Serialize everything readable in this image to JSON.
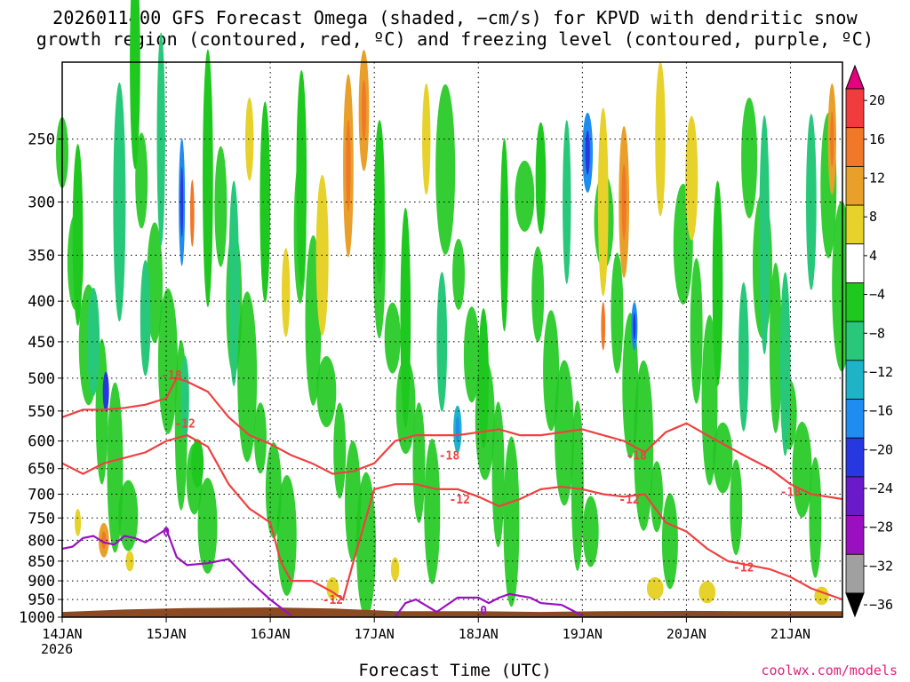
{
  "title_line1": "2026011400 GFS Forecast Omega (shaded, −cm/s) for KPVD with dendritic snow",
  "title_line2": "growth region (contoured, red, ºC) and freezing level (contoured, purple, ºC)",
  "credit": "coolwx.com/models",
  "chart_data": {
    "type": "heatmap",
    "title": "2026011400 GFS Forecast Omega (shaded, −cm/s) for KPVD with dendritic snow growth region (contoured, red, ºC) and freezing level (contoured, purple, ºC)",
    "xlabel": "Forecast Time (UTC)",
    "ylabel": "",
    "x_ticks": [
      "14JAN",
      "15JAN",
      "16JAN",
      "17JAN",
      "18JAN",
      "19JAN",
      "20JAN",
      "21JAN"
    ],
    "x_year": "2026",
    "xlim_days": [
      0,
      7.5
    ],
    "y_ticks": [
      250,
      300,
      350,
      400,
      450,
      500,
      550,
      600,
      650,
      700,
      750,
      800,
      850,
      900,
      950,
      1000
    ],
    "ylim_hpa": [
      1000,
      200
    ],
    "grid": true,
    "colorbar": {
      "levels": [
        -36,
        -32,
        -28,
        -24,
        -20,
        -16,
        -12,
        -8,
        -4,
        4,
        8,
        12,
        16,
        20
      ],
      "labels": [
        "20",
        "16",
        "12",
        "8",
        "4",
        "−4",
        "−8",
        "−12",
        "−16",
        "−20",
        "−24",
        "−28",
        "−32",
        "−36"
      ],
      "colors": [
        "#e6007e",
        "#f03c3c",
        "#f07828",
        "#e8a02a",
        "#e6d22a",
        "#ffffff",
        "#1ec81e",
        "#28c87a",
        "#1eb4c8",
        "#1e8cf0",
        "#2838e0",
        "#6a1ac8",
        "#9a10c0",
        "#a0a0a0",
        "#000000"
      ]
    },
    "shading_levels": [
      {
        "value": -4,
        "color": "#1ec81e"
      },
      {
        "value": -8,
        "color": "#28c87a"
      },
      {
        "value": -12,
        "color": "#1eb4c8"
      },
      {
        "value": -16,
        "color": "#1e8cf0"
      },
      {
        "value": -20,
        "color": "#2838e0"
      },
      {
        "value": 4,
        "color": "#e6d22a"
      },
      {
        "value": 8,
        "color": "#e8a02a"
      },
      {
        "value": 12,
        "color": "#f07828"
      }
    ],
    "series": [
      {
        "name": "-18",
        "color": "#f04040",
        "days": [
          0.0,
          0.2,
          0.4,
          0.6,
          0.8,
          1.0,
          1.1,
          1.2,
          1.4,
          1.6,
          1.8,
          2.0,
          2.2,
          2.4,
          2.6,
          2.8,
          3.0,
          3.2,
          3.4,
          3.6,
          3.8,
          4.0,
          4.2,
          4.4,
          4.6,
          4.8,
          5.0,
          5.2,
          5.4,
          5.6,
          5.8,
          6.0,
          6.2,
          6.4,
          6.6,
          6.8,
          7.0,
          7.2,
          7.5
        ],
        "hpa": [
          560,
          548,
          548,
          545,
          540,
          530,
          500,
          505,
          520,
          560,
          590,
          605,
          625,
          640,
          660,
          655,
          640,
          600,
          590,
          590,
          590,
          585,
          580,
          590,
          590,
          585,
          580,
          590,
          600,
          620,
          585,
          570,
          590,
          610,
          630,
          650,
          680,
          700,
          710
        ]
      },
      {
        "name": "-12",
        "color": "#f04040",
        "days": [
          0.0,
          0.2,
          0.4,
          0.6,
          0.8,
          1.0,
          1.2,
          1.4,
          1.6,
          1.8,
          2.0,
          2.1,
          2.2,
          2.4,
          2.6,
          2.7,
          2.8,
          3.0,
          3.2,
          3.4,
          3.6,
          3.8,
          4.0,
          4.2,
          4.4,
          4.6,
          4.8,
          5.0,
          5.2,
          5.4,
          5.6,
          5.8,
          6.0,
          6.2,
          6.4,
          6.6,
          6.8,
          7.0,
          7.2,
          7.5
        ],
        "hpa": [
          640,
          660,
          640,
          630,
          620,
          600,
          590,
          610,
          680,
          730,
          760,
          850,
          900,
          900,
          930,
          950,
          850,
          690,
          680,
          680,
          690,
          690,
          705,
          725,
          710,
          690,
          685,
          690,
          700,
          705,
          700,
          760,
          780,
          820,
          850,
          860,
          870,
          890,
          920,
          950
        ]
      },
      {
        "name": "0",
        "color": "#9a10c0",
        "days": [
          0.0,
          0.1,
          0.2,
          0.3,
          0.4,
          0.5,
          0.6,
          0.7,
          0.8,
          0.9,
          1.0,
          1.1,
          1.2,
          1.4,
          1.6,
          1.8,
          2.0,
          2.2
        ],
        "hpa": [
          820,
          815,
          795,
          790,
          805,
          810,
          790,
          795,
          805,
          790,
          775,
          840,
          860,
          855,
          845,
          900,
          950,
          995
        ]
      },
      {
        "name": "0",
        "color": "#9a10c0",
        "days": [
          3.2,
          3.3,
          3.4,
          3.6,
          3.8,
          4.0,
          4.1,
          4.2,
          4.3,
          4.5,
          4.6,
          4.8,
          5.0
        ],
        "hpa": [
          1000,
          960,
          950,
          985,
          945,
          945,
          960,
          945,
          935,
          945,
          960,
          965,
          995
        ]
      }
    ],
    "labels": [
      {
        "text": "-18",
        "day": 1.05,
        "hpa": 495
      },
      {
        "text": "-12",
        "day": 1.18,
        "hpa": 570
      },
      {
        "text": "-12",
        "day": 2.6,
        "hpa": 950
      },
      {
        "text": "-18",
        "day": 3.72,
        "hpa": 625
      },
      {
        "text": "-12",
        "day": 3.82,
        "hpa": 710
      },
      {
        "text": "-18",
        "day": 5.52,
        "hpa": 625
      },
      {
        "text": "-12",
        "day": 5.45,
        "hpa": 710
      },
      {
        "text": "-12",
        "day": 6.55,
        "hpa": 865
      },
      {
        "text": "-18",
        "day": 7.0,
        "hpa": 695
      },
      {
        "text": "0",
        "day": 1.0,
        "hpa": 780
      },
      {
        "text": "0",
        "day": 4.05,
        "hpa": 980
      }
    ],
    "ground_color": "#8b4a22"
  },
  "blobs": [
    {
      "d": 0.15,
      "p": 330,
      "w": 0.05,
      "h": 170,
      "v": -6
    },
    {
      "d": 0.3,
      "p": 450,
      "w": 0.06,
      "h": 140,
      "v": -10
    },
    {
      "d": 0.42,
      "p": 520,
      "w": 0.03,
      "h": 60,
      "v": -20
    },
    {
      "d": 0.55,
      "p": 300,
      "w": 0.06,
      "h": 200,
      "v": -8
    },
    {
      "d": 0.7,
      "p": 200,
      "w": 0.05,
      "h": 120,
      "v": -6
    },
    {
      "d": 0.8,
      "p": 420,
      "w": 0.05,
      "h": 140,
      "v": -8
    },
    {
      "d": 0.95,
      "p": 250,
      "w": 0.04,
      "h": 150,
      "v": -8
    },
    {
      "d": 1.15,
      "p": 300,
      "w": 0.03,
      "h": 110,
      "v": -18
    },
    {
      "d": 1.25,
      "p": 310,
      "w": 0.02,
      "h": 60,
      "v": 12
    },
    {
      "d": 1.18,
      "p": 530,
      "w": 0.04,
      "h": 130,
      "v": -10
    },
    {
      "d": 1.4,
      "p": 280,
      "w": 0.05,
      "h": 200,
      "v": -6
    },
    {
      "d": 1.3,
      "p": 640,
      "w": 0.06,
      "h": 90,
      "v": -6
    },
    {
      "d": 0.4,
      "p": 800,
      "w": 0.05,
      "h": 80,
      "v": 8
    },
    {
      "d": 0.15,
      "p": 760,
      "w": 0.03,
      "h": 60,
      "v": 5
    },
    {
      "d": 0.65,
      "p": 850,
      "w": 0.04,
      "h": 50,
      "v": 6
    },
    {
      "d": 1.65,
      "p": 380,
      "w": 0.05,
      "h": 220,
      "v": -8
    },
    {
      "d": 1.8,
      "p": 250,
      "w": 0.04,
      "h": 60,
      "v": 6
    },
    {
      "d": 1.95,
      "p": 300,
      "w": 0.05,
      "h": 170,
      "v": -6
    },
    {
      "d": 2.15,
      "p": 390,
      "w": 0.04,
      "h": 100,
      "v": 6
    },
    {
      "d": 2.3,
      "p": 280,
      "w": 0.05,
      "h": 170,
      "v": -6
    },
    {
      "d": 2.5,
      "p": 350,
      "w": 0.06,
      "h": 160,
      "v": 5
    },
    {
      "d": 2.75,
      "p": 270,
      "w": 0.05,
      "h": 140,
      "v": 10
    },
    {
      "d": 2.9,
      "p": 230,
      "w": 0.05,
      "h": 80,
      "v": 8
    },
    {
      "d": 3.05,
      "p": 300,
      "w": 0.05,
      "h": 140,
      "v": -6
    },
    {
      "d": 3.3,
      "p": 420,
      "w": 0.05,
      "h": 260,
      "v": -6
    },
    {
      "d": 3.5,
      "p": 250,
      "w": 0.04,
      "h": 80,
      "v": 5
    },
    {
      "d": 3.65,
      "p": 450,
      "w": 0.05,
      "h": 180,
      "v": -8
    },
    {
      "d": 3.8,
      "p": 580,
      "w": 0.04,
      "h": 80,
      "v": -14
    },
    {
      "d": 4.05,
      "p": 500,
      "w": 0.05,
      "h": 200,
      "v": -6
    },
    {
      "d": 4.25,
      "p": 330,
      "w": 0.04,
      "h": 180,
      "v": -6
    },
    {
      "d": 4.6,
      "p": 280,
      "w": 0.05,
      "h": 90,
      "v": -6
    },
    {
      "d": 4.85,
      "p": 300,
      "w": 0.04,
      "h": 140,
      "v": -8
    },
    {
      "d": 5.05,
      "p": 260,
      "w": 0.05,
      "h": 60,
      "v": -18
    },
    {
      "d": 5.2,
      "p": 300,
      "w": 0.05,
      "h": 160,
      "v": 5
    },
    {
      "d": 5.4,
      "p": 300,
      "w": 0.05,
      "h": 130,
      "v": 8
    },
    {
      "d": 5.2,
      "p": 430,
      "w": 0.02,
      "h": 60,
      "v": 12
    },
    {
      "d": 5.5,
      "p": 430,
      "w": 0.03,
      "h": 60,
      "v": -16
    },
    {
      "d": 5.75,
      "p": 250,
      "w": 0.05,
      "h": 110,
      "v": 5
    },
    {
      "d": 6.05,
      "p": 280,
      "w": 0.06,
      "h": 100,
      "v": 4
    },
    {
      "d": 6.3,
      "p": 380,
      "w": 0.05,
      "h": 220,
      "v": -6
    },
    {
      "d": 6.55,
      "p": 470,
      "w": 0.05,
      "h": 200,
      "v": -10
    },
    {
      "d": 6.75,
      "p": 330,
      "w": 0.05,
      "h": 220,
      "v": -8
    },
    {
      "d": 6.95,
      "p": 480,
      "w": 0.05,
      "h": 250,
      "v": -8
    },
    {
      "d": 7.2,
      "p": 300,
      "w": 0.05,
      "h": 150,
      "v": -8
    },
    {
      "d": 7.4,
      "p": 250,
      "w": 0.04,
      "h": 80,
      "v": 8
    },
    {
      "d": 5.7,
      "p": 920,
      "w": 0.08,
      "h": 60,
      "v": 4
    },
    {
      "d": 6.2,
      "p": 930,
      "w": 0.08,
      "h": 60,
      "v": 4
    },
    {
      "d": 7.3,
      "p": 940,
      "w": 0.07,
      "h": 50,
      "v": 4
    },
    {
      "d": 2.6,
      "p": 920,
      "w": 0.06,
      "h": 60,
      "v": 4
    },
    {
      "d": 3.2,
      "p": 870,
      "w": 0.04,
      "h": 60,
      "v": 4
    }
  ]
}
